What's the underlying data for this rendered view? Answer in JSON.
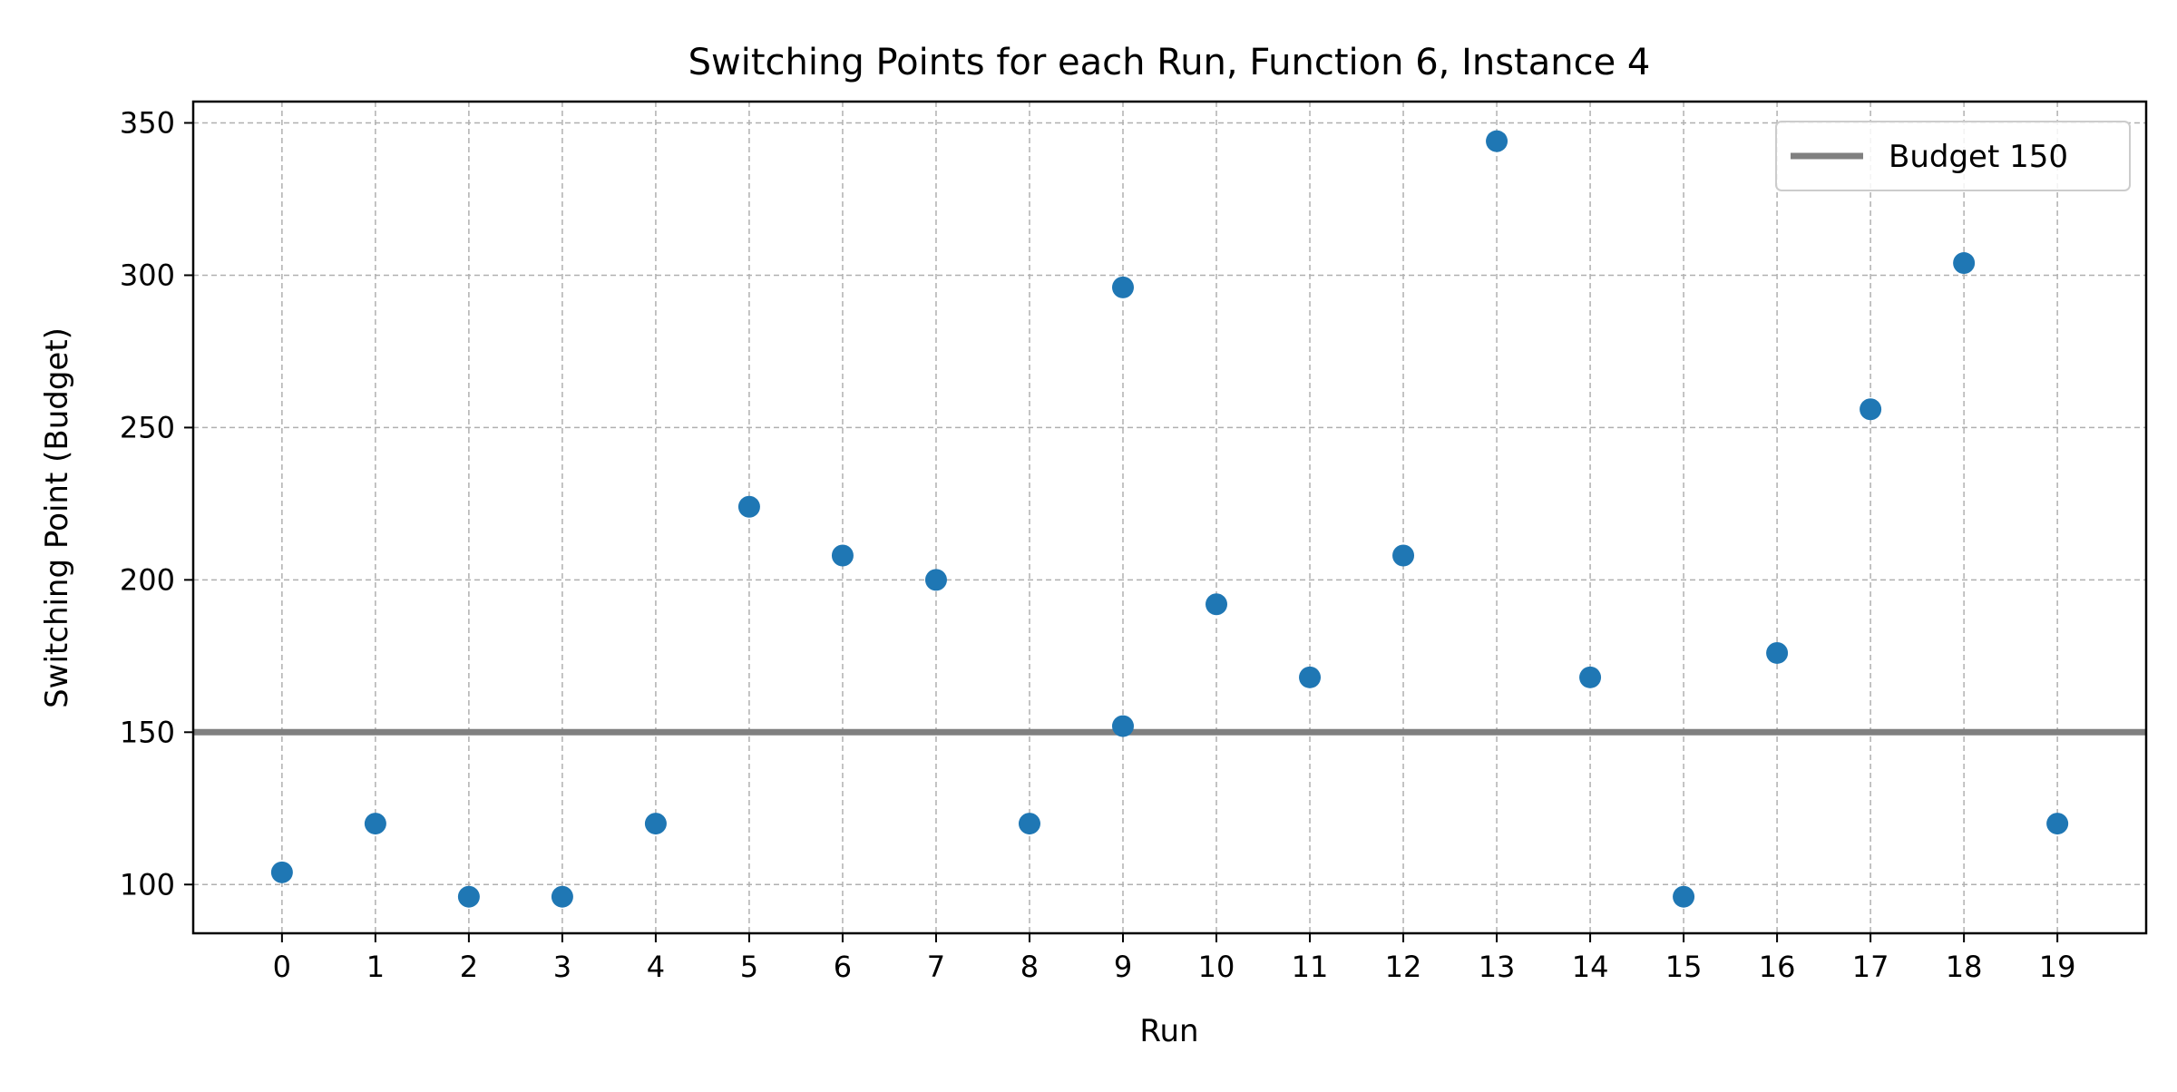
{
  "chart_data": {
    "type": "scatter",
    "title": "Switching Points for each Run, Function 6, Instance 4",
    "xlabel": "Run",
    "ylabel": "Switching Point (Budget)",
    "x": [
      0,
      1,
      2,
      3,
      4,
      5,
      6,
      7,
      8,
      9,
      9,
      10,
      11,
      12,
      13,
      14,
      15,
      16,
      17,
      18,
      19
    ],
    "y": [
      104,
      120,
      96,
      96,
      120,
      224,
      208,
      200,
      120,
      296,
      152,
      192,
      168,
      208,
      344,
      168,
      96,
      176,
      256,
      304,
      120
    ],
    "xticks": [
      0,
      1,
      2,
      3,
      4,
      5,
      6,
      7,
      8,
      9,
      10,
      11,
      12,
      13,
      14,
      15,
      16,
      17,
      18,
      19
    ],
    "yticks": [
      100,
      150,
      200,
      250,
      300,
      350
    ],
    "xlim": [
      -0.95,
      19.95
    ],
    "ylim": [
      84,
      357
    ],
    "grid": true,
    "reference_line": {
      "y": 150,
      "label": "Budget 150",
      "color": "#808080"
    },
    "legend": {
      "position": "top-right",
      "entries": [
        "Budget 150"
      ]
    },
    "point_color": "#1f77b4"
  }
}
